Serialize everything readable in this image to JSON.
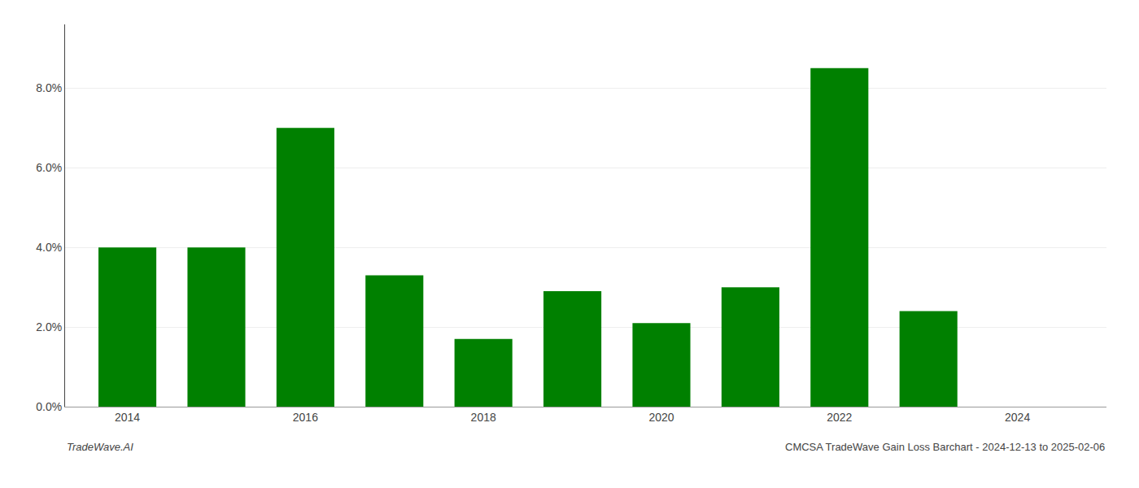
{
  "chart_data": {
    "type": "bar",
    "x": [
      2014,
      2015,
      2016,
      2017,
      2018,
      2019,
      2020,
      2021,
      2022,
      2023,
      2024
    ],
    "values": [
      0.04,
      0.04,
      0.07,
      0.033,
      0.017,
      0.029,
      0.021,
      0.03,
      0.085,
      0.024,
      0.0
    ],
    "color": "#008000",
    "xlim": [
      2013.3,
      2025.0
    ],
    "xticks": [
      2014,
      2016,
      2018,
      2020,
      2022,
      2024
    ],
    "ylim": [
      0,
      0.096
    ],
    "yticks": [
      {
        "value": 0.0,
        "label": "0.0%"
      },
      {
        "value": 0.02,
        "label": "2.0%"
      },
      {
        "value": 0.04,
        "label": "4.0%"
      },
      {
        "value": 0.06,
        "label": "6.0%"
      },
      {
        "value": 0.08,
        "label": "8.0%"
      }
    ],
    "grid": "y",
    "annotations": [
      "TradeWave.AI",
      "CMCSA TradeWave Gain Loss Barchart - 2024-12-13 to 2025-02-06"
    ]
  }
}
